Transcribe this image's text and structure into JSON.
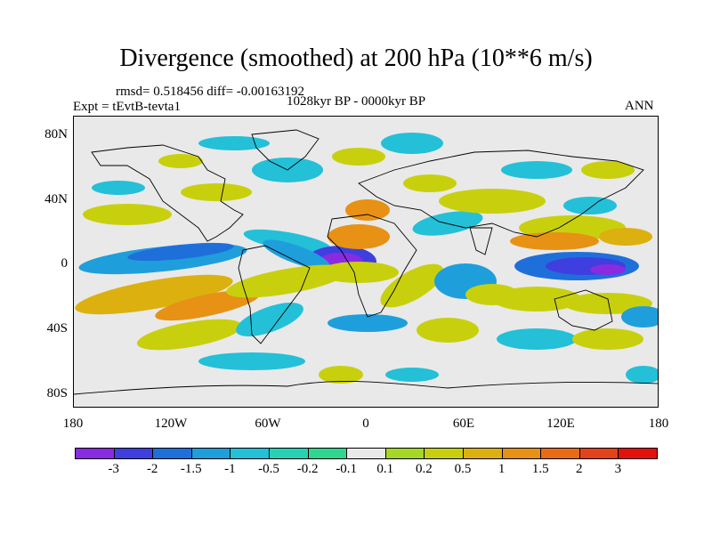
{
  "title": "Divergence (smoothed) at 200 hPa (10**6 m/s)",
  "stats": "rmsd= 0.518456 diff= -0.00163192",
  "experiment": "Expt = tEvtB-tevta1",
  "period": "1028kyr BP - 0000kyr BP",
  "season": "ANN",
  "lat_labels": [
    "80N",
    "40N",
    "0",
    "40S",
    "80S"
  ],
  "lon_labels": [
    "180",
    "120W",
    "60W",
    "0",
    "60E",
    "120E",
    "180"
  ],
  "colorbar": {
    "colors": [
      "#8a2be2",
      "#3f3fe0",
      "#1f6fdb",
      "#1e9fdc",
      "#23c0d8",
      "#27d2b4",
      "#2fd68f",
      "#e9e9e9",
      "#a4d824",
      "#c8d00e",
      "#dcb10f",
      "#e79115",
      "#e86c14",
      "#e2431b",
      "#e3100c"
    ],
    "levels": [
      "-3",
      "-2",
      "-1.5",
      "-1",
      "-0.5",
      "-0.2",
      "-0.1",
      "0.1",
      "0.2",
      "0.5",
      "1",
      "1.5",
      "2",
      "3"
    ]
  }
}
